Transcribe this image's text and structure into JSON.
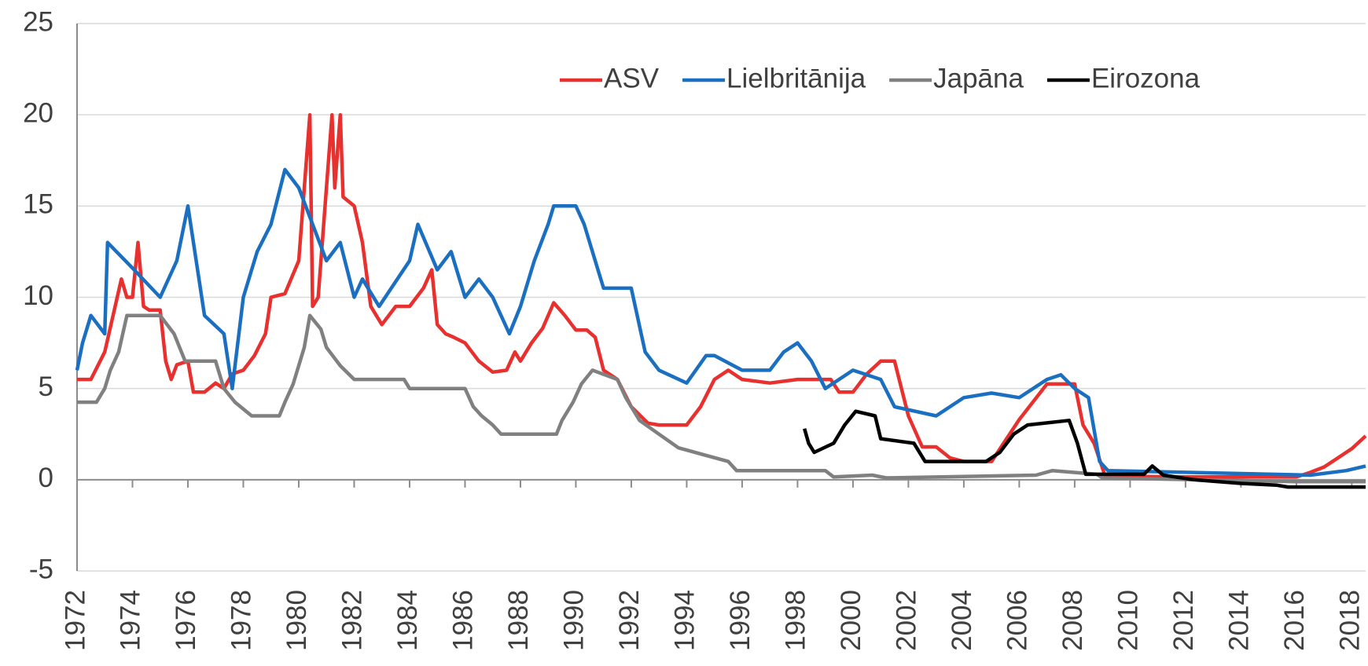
{
  "chart_data": {
    "type": "line",
    "xlim": [
      1972,
      2018.5
    ],
    "xticks": [
      1972,
      1974,
      1976,
      1978,
      1980,
      1982,
      1984,
      1986,
      1988,
      1990,
      1992,
      1994,
      1996,
      1998,
      2000,
      2002,
      2004,
      2006,
      2008,
      2010,
      2012,
      2014,
      2016,
      2018
    ],
    "ylim": [
      -5,
      25
    ],
    "yticks": [
      -5,
      0,
      5,
      10,
      15,
      20,
      25
    ],
    "grid": true,
    "legend": "top-right",
    "series": [
      {
        "name": "ASV",
        "color": "#e8312f",
        "x": [
          1972,
          1972.5,
          1973,
          1973.3,
          1973.6,
          1973.8,
          1974,
          1974.2,
          1974.4,
          1974.6,
          1975,
          1975.2,
          1975.4,
          1975.6,
          1976,
          1976.2,
          1976.6,
          1977,
          1977.3,
          1977.6,
          1978,
          1978.4,
          1978.8,
          1979,
          1979.5,
          1980,
          1980.4,
          1980.5,
          1980.7,
          1981,
          1981.2,
          1981.3,
          1981.5,
          1981.6,
          1982,
          1982.3,
          1982.6,
          1983,
          1983.5,
          1984,
          1984.5,
          1984.8,
          1985,
          1985.3,
          1985.6,
          1986,
          1986.5,
          1987,
          1987.5,
          1987.8,
          1988,
          1988.4,
          1988.8,
          1989.2,
          1989.6,
          1990,
          1990.4,
          1990.7,
          1991,
          1991.5,
          1992,
          1992.6,
          1993,
          1994,
          1994.5,
          1995,
          1995.5,
          1996,
          1997,
          1998,
          1999.2,
          1999.5,
          2000,
          2000.5,
          2001,
          2001.5,
          2002,
          2002.5,
          2003,
          2003.5,
          2004,
          2005,
          2006,
          2007,
          2008,
          2008.3,
          2008.7,
          2009.1,
          2012,
          2016,
          2016.5,
          2017,
          2017.5,
          2018,
          2018.5
        ],
        "values": [
          5.5,
          5.5,
          7,
          9,
          11,
          10,
          10,
          13,
          9.5,
          9.3,
          9.3,
          6.5,
          5.5,
          6.3,
          6.5,
          4.8,
          4.8,
          5.3,
          5,
          5.8,
          6,
          6.8,
          8,
          10,
          10.2,
          12,
          20,
          9.5,
          10,
          16,
          20,
          16,
          20,
          15.5,
          15,
          13,
          9.5,
          8.5,
          9.5,
          9.5,
          10.5,
          11.5,
          8.5,
          8,
          7.8,
          7.5,
          6.5,
          5.9,
          6,
          7,
          6.5,
          7.5,
          8.3,
          9.7,
          9,
          8.2,
          8.2,
          7.8,
          6,
          5.5,
          4,
          3.1,
          3,
          3,
          4,
          5.5,
          6,
          5.5,
          5.3,
          5.5,
          5.5,
          4.8,
          4.8,
          5.8,
          6.5,
          6.5,
          3.5,
          1.8,
          1.8,
          1.2,
          1,
          1,
          3.3,
          5.25,
          5.25,
          3,
          2,
          0.2,
          0.15,
          0.15,
          0.4,
          0.7,
          1.2,
          1.7,
          2.4
        ]
      },
      {
        "name": "Lielbritānija",
        "color": "#1b6fc0",
        "x": [
          1972,
          1972.2,
          1972.5,
          1973,
          1973.1,
          1974,
          1975,
          1975.6,
          1976,
          1976.6,
          1977.3,
          1977.6,
          1978,
          1978.5,
          1979,
          1979.5,
          1980,
          1980.5,
          1981,
          1981.5,
          1982,
          1982.3,
          1982.9,
          1984,
          1984.3,
          1985,
          1985.5,
          1986,
          1986.5,
          1987,
          1987.6,
          1988,
          1988.5,
          1989,
          1989.2,
          1990,
          1990.3,
          1990.8,
          1991,
          1992,
          1992.5,
          1993,
          1994,
          1994.7,
          1995,
          1996,
          1997,
          1997.5,
          1998,
          1998.5,
          1999,
          2000,
          2001,
          2001.5,
          2003,
          2004,
          2005,
          2006,
          2007,
          2007.5,
          2008,
          2008.5,
          2008.9,
          2009.2,
          2016.5,
          2017.8,
          2018.5
        ],
        "values": [
          6,
          7.5,
          9,
          8,
          13,
          11.6,
          10,
          12,
          15,
          9,
          8,
          5,
          10,
          12.5,
          14,
          17,
          16,
          14,
          12,
          13,
          10,
          11,
          9.5,
          12,
          14,
          11.5,
          12.5,
          10,
          11,
          10,
          8,
          9.5,
          12,
          14,
          15,
          15,
          14,
          11.5,
          10.5,
          10.5,
          7,
          6,
          5.3,
          6.8,
          6.8,
          6,
          6,
          7,
          7.5,
          6.5,
          5,
          6,
          5.5,
          4,
          3.5,
          4.5,
          4.75,
          4.5,
          5.5,
          5.75,
          5,
          4.5,
          1,
          0.5,
          0.25,
          0.5,
          0.75
        ]
      },
      {
        "name": "Japāna",
        "color": "#808080",
        "x": [
          1972,
          1972.7,
          1973,
          1973.2,
          1973.5,
          1973.8,
          1975,
          1975.5,
          1975.9,
          1977,
          1977.3,
          1977.7,
          1978.3,
          1979.3,
          1979.5,
          1979.8,
          1980.2,
          1980.4,
          1980.8,
          1981,
          1981.5,
          1982,
          1983.8,
          1984,
          1986,
          1986.3,
          1986.6,
          1987,
          1987.3,
          1989.3,
          1989.5,
          1989.9,
          1990.2,
          1990.6,
          1991.5,
          1991.8,
          1992.3,
          1993,
          1993.7,
          1995.5,
          1995.8,
          1999,
          1999.3,
          2000.7,
          2001.2,
          2006.6,
          2007.2,
          2008.8,
          2009,
          2016,
          2018.5
        ],
        "values": [
          4.25,
          4.25,
          5,
          6,
          7,
          9,
          9,
          8,
          6.5,
          6.5,
          5,
          4.25,
          3.5,
          3.5,
          4.25,
          5.25,
          7.25,
          9,
          8.25,
          7.25,
          6.25,
          5.5,
          5.5,
          5,
          5,
          4,
          3.5,
          3,
          2.5,
          2.5,
          3.25,
          4.25,
          5.25,
          6,
          5.5,
          4.5,
          3.25,
          2.5,
          1.75,
          1,
          0.5,
          0.5,
          0.15,
          0.25,
          0.1,
          0.25,
          0.5,
          0.3,
          0.1,
          -0.1,
          -0.1
        ]
      },
      {
        "name": "Eirozona",
        "color": "#000000",
        "x": [
          1998.25,
          1998.4,
          1998.6,
          1999.3,
          1999.7,
          2000.1,
          2000.8,
          2001,
          2002.2,
          2002.6,
          2004.8,
          2005.3,
          2005.8,
          2006.3,
          2007.8,
          2008.1,
          2008.4,
          2010.5,
          2010.8,
          2011.2,
          2012.3,
          2014,
          2015.3,
          2015.7,
          2018.5
        ],
        "values": [
          2.8,
          2,
          1.5,
          2,
          3,
          3.75,
          3.5,
          2.25,
          2,
          1,
          1,
          1.5,
          2.5,
          3,
          3.25,
          2,
          0.3,
          0.3,
          0.75,
          0.25,
          0,
          -0.2,
          -0.3,
          -0.4,
          -0.4
        ]
      }
    ]
  }
}
